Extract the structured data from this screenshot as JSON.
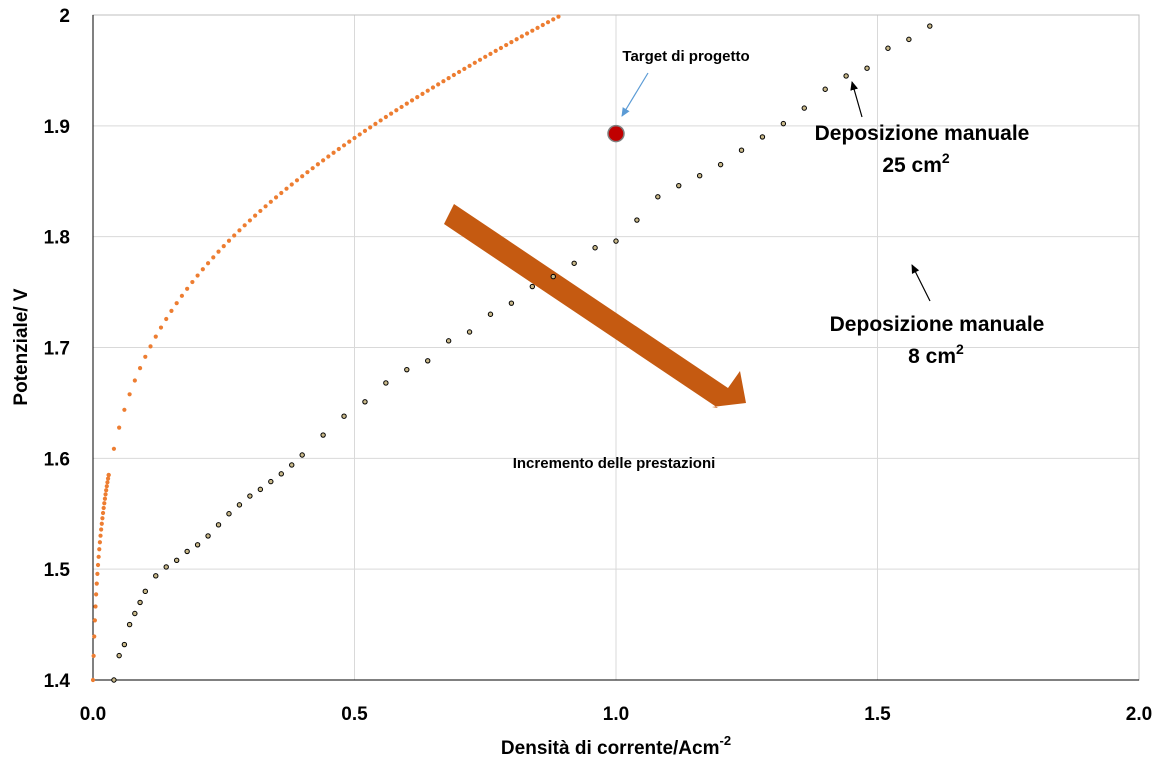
{
  "chart_data": {
    "type": "scatter",
    "xlabel": "Densità di corrente/Acm",
    "xlabel_sup": "-2",
    "ylabel": "Potenziale/ V",
    "xlim": [
      0,
      2
    ],
    "ylim": [
      1.4,
      2
    ],
    "x_ticks": [
      "0.0",
      "0.5",
      "1.0",
      "1.5",
      "2.0"
    ],
    "y_ticks": [
      "1.4",
      "1.5",
      "1.6",
      "1.7",
      "1.8",
      "1.9",
      "2"
    ],
    "grid": true,
    "legend": "none",
    "colors": {
      "series_25": "#c9b98a",
      "series_8": "#ed7d31",
      "target": "#c00000",
      "arrow": "#c55a11",
      "callout": "#5b9bd5"
    },
    "series": [
      {
        "key": "25cm2",
        "marker": "open-circle",
        "x": [
          0.04,
          0.05,
          0.06,
          0.07,
          0.08,
          0.09,
          0.1,
          0.12,
          0.14,
          0.16,
          0.18,
          0.2,
          0.22,
          0.24,
          0.26,
          0.28,
          0.3,
          0.32,
          0.34,
          0.36,
          0.38,
          0.4,
          0.44,
          0.48,
          0.52,
          0.56,
          0.6,
          0.64,
          0.68,
          0.72,
          0.76,
          0.8,
          0.84,
          0.88,
          0.92,
          0.96,
          1.0,
          1.04,
          1.08,
          1.12,
          1.16,
          1.2,
          1.24,
          1.28,
          1.32,
          1.36,
          1.4,
          1.44,
          1.48,
          1.52,
          1.56,
          1.6
        ],
        "y": [
          1.4,
          1.422,
          1.432,
          1.45,
          1.46,
          1.47,
          1.48,
          1.494,
          1.502,
          1.508,
          1.516,
          1.522,
          1.53,
          1.54,
          1.55,
          1.558,
          1.566,
          1.572,
          1.579,
          1.586,
          1.594,
          1.603,
          1.621,
          1.638,
          1.651,
          1.668,
          1.68,
          1.688,
          1.706,
          1.714,
          1.73,
          1.74,
          1.755,
          1.764,
          1.776,
          1.79,
          1.796,
          1.815,
          1.836,
          1.846,
          1.855,
          1.865,
          1.878,
          1.89,
          1.902,
          1.916,
          1.933,
          1.945,
          1.952,
          1.97,
          1.978,
          1.99
        ]
      },
      {
        "key": "8cm2",
        "marker": "filled-circle",
        "model": {
          "a": 1.4,
          "b": 0.086,
          "c": 0.0042,
          "d": 0.1545,
          "step": 0.01
        }
      }
    ],
    "target_point": {
      "x": 1.0,
      "y": 1.893
    },
    "annotations": {
      "target_label": "Target di progetto",
      "series_25_label_line1": "Deposizione manuale",
      "series_25_label_line2": "25 cm",
      "series_8_label_line1": "Deposizione manuale",
      "series_8_label_line2": "8 cm",
      "area_superscript": "2",
      "trend_label": "Incremento delle prestazioni"
    }
  }
}
